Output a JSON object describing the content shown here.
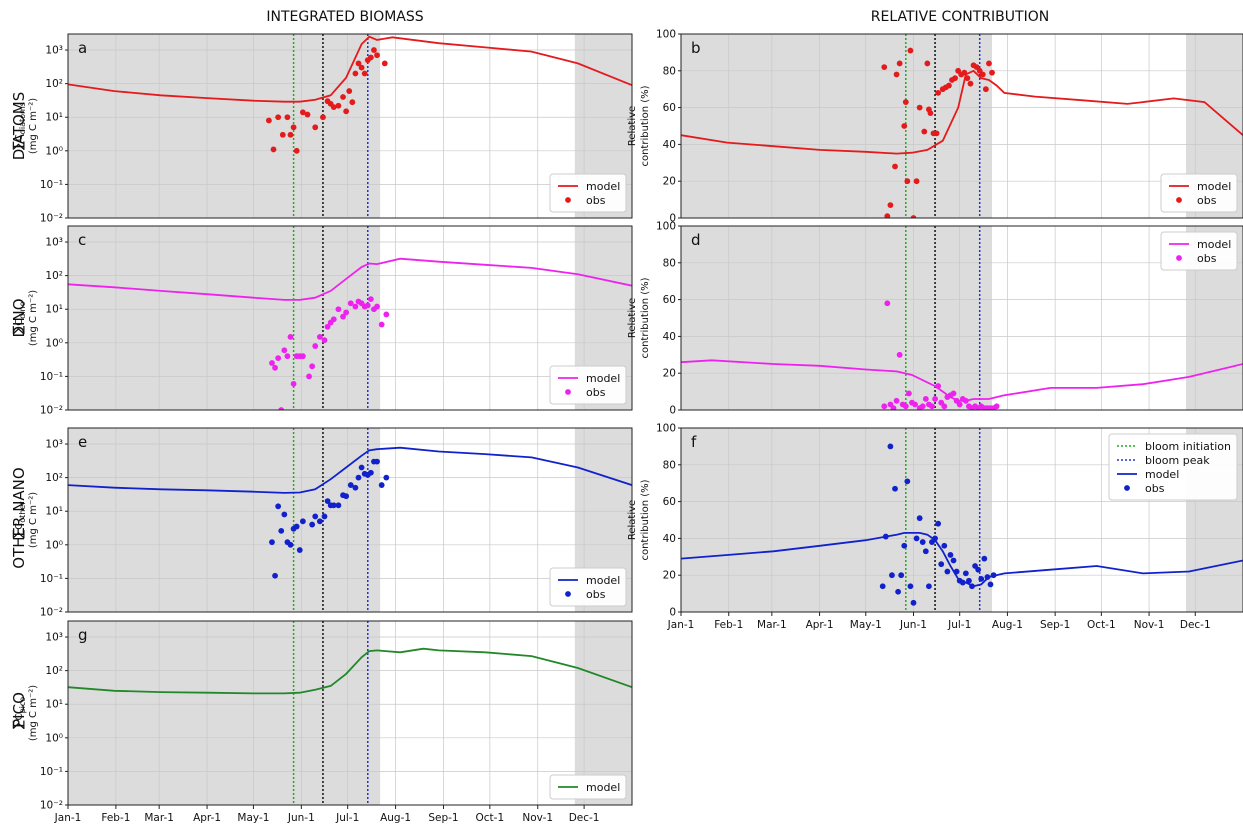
{
  "column_titles": {
    "left": "INTEGRATED BIOMASS",
    "right": "RELATIVE CONTRIBUTION"
  },
  "row_labels": [
    "DIATOMS",
    "DINO",
    "OTHER NANO",
    "PICO"
  ],
  "months": [
    "Jan-1",
    "Feb-1",
    "Mar-1",
    "Apr-1",
    "May-1",
    "Jun-1",
    "Jul-1",
    "Aug-1",
    "Sep-1",
    "Oct-1",
    "Nov-1",
    "Dec-1"
  ],
  "colors": {
    "diatoms": "#e41a1c",
    "dino": "#ee22ee",
    "nano": "#1122cc",
    "pico": "#22882a",
    "shade": "#dcdcdc",
    "bloom_init": "#22aa22",
    "bloom_peak": "#2233cc",
    "black_line": "#111111"
  },
  "markers": {
    "bloom_init_day": 146,
    "shift_day": 165,
    "bloom_peak_day": 194,
    "shade_windows": [
      [
        0,
        202
      ],
      [
        328,
        365
      ]
    ]
  },
  "ticks": {
    "log": [
      "10⁻²",
      "10⁻¹",
      "10⁰",
      "10¹",
      "10²",
      "10³"
    ],
    "pct": [
      "0",
      "20",
      "40",
      "60",
      "80",
      "100"
    ]
  },
  "legend": {
    "model": "model",
    "obs": "obs",
    "bloom_init": "bloom initiation",
    "bloom_peak": "bloom peak"
  },
  "chart_data": [
    {
      "type": "line",
      "panel": "a",
      "group": "DIATOMS",
      "yscale": "log",
      "ylim": [
        0.01,
        3000
      ],
      "ylabel": "∑C_diatoms (mg C m⁻²)",
      "model": {
        "x": [
          0,
          30,
          60,
          90,
          120,
          140,
          150,
          160,
          170,
          180,
          190,
          195,
          200,
          210,
          240,
          270,
          300,
          330,
          365
        ],
        "y": [
          95,
          60,
          45,
          37,
          31,
          29,
          29,
          33,
          45,
          150,
          1500,
          2500,
          2000,
          2400,
          1600,
          1200,
          900,
          400,
          90
        ]
      },
      "obs": {
        "x": [
          130,
          133,
          136,
          139,
          142,
          144,
          146,
          148,
          152,
          155,
          160,
          165,
          168,
          170,
          172,
          175,
          178,
          180,
          182,
          184,
          186,
          188,
          190,
          192,
          194,
          196,
          198,
          200,
          205
        ],
        "y": [
          8,
          1.1,
          10,
          3,
          10,
          3,
          5,
          1,
          14,
          12,
          5,
          10,
          30,
          25,
          20,
          22,
          40,
          15,
          60,
          28,
          200,
          400,
          300,
          200,
          500,
          600,
          1000,
          700,
          400
        ]
      },
      "legend": [
        "model",
        "obs"
      ]
    },
    {
      "type": "line",
      "panel": "c",
      "group": "DINO",
      "yscale": "log",
      "ylim": [
        0.01,
        3000
      ],
      "ylabel": "∑C_dino (mg C m⁻²)",
      "model": {
        "x": [
          0,
          30,
          60,
          90,
          120,
          140,
          150,
          160,
          170,
          180,
          190,
          195,
          200,
          215,
          240,
          270,
          300,
          330,
          365
        ],
        "y": [
          55,
          45,
          35,
          28,
          22,
          19,
          19,
          22,
          35,
          80,
          180,
          230,
          220,
          320,
          260,
          210,
          170,
          110,
          50
        ]
      },
      "obs": {
        "x": [
          132,
          134,
          136,
          138,
          140,
          142,
          144,
          146,
          148,
          150,
          152,
          156,
          158,
          160,
          163,
          166,
          168,
          170,
          172,
          175,
          178,
          180,
          183,
          186,
          188,
          190,
          192,
          194,
          196,
          198,
          200,
          203,
          206
        ],
        "y": [
          0.25,
          0.18,
          0.35,
          0.01,
          0.6,
          0.4,
          1.5,
          0.06,
          0.4,
          0.4,
          0.4,
          0.1,
          0.2,
          0.8,
          1.5,
          1.2,
          3,
          4,
          5,
          10,
          6,
          8,
          15,
          12,
          17,
          15,
          12,
          13,
          20,
          10,
          12,
          3.5,
          7
        ]
      },
      "legend": [
        "model",
        "obs"
      ]
    },
    {
      "type": "line",
      "panel": "e",
      "group": "OTHER NANO",
      "yscale": "log",
      "ylim": [
        0.01,
        3000
      ],
      "ylabel": "∑C_other (mg C m⁻²)",
      "model": {
        "x": [
          0,
          30,
          60,
          90,
          120,
          140,
          150,
          160,
          170,
          180,
          190,
          195,
          200,
          215,
          240,
          270,
          300,
          330,
          365
        ],
        "y": [
          60,
          50,
          45,
          42,
          38,
          35,
          36,
          45,
          90,
          200,
          450,
          650,
          700,
          780,
          600,
          500,
          400,
          200,
          60
        ]
      },
      "obs": {
        "x": [
          132,
          134,
          136,
          138,
          140,
          142,
          144,
          146,
          148,
          150,
          152,
          158,
          160,
          163,
          166,
          168,
          170,
          172,
          175,
          178,
          180,
          183,
          186,
          188,
          190,
          192,
          194,
          196,
          198,
          200,
          203,
          206
        ],
        "y": [
          1.2,
          0.12,
          14,
          2.6,
          8,
          1.2,
          1,
          3,
          3.5,
          0.7,
          5,
          4,
          7,
          5,
          7,
          20,
          15,
          15,
          15,
          30,
          28,
          60,
          50,
          100,
          200,
          130,
          120,
          140,
          300,
          300,
          60,
          100
        ]
      },
      "legend": [
        "model",
        "obs"
      ]
    },
    {
      "type": "line",
      "panel": "g",
      "group": "PICO",
      "yscale": "log",
      "ylim": [
        0.01,
        3000
      ],
      "ylabel": "∑C_pico (mg C m⁻²)",
      "model": {
        "x": [
          0,
          30,
          60,
          90,
          120,
          140,
          150,
          160,
          170,
          180,
          190,
          195,
          200,
          215,
          230,
          240,
          270,
          300,
          330,
          365
        ],
        "y": [
          32,
          25,
          23,
          22,
          21,
          21,
          22,
          27,
          35,
          80,
          250,
          380,
          400,
          350,
          450,
          400,
          350,
          270,
          120,
          32
        ]
      },
      "legend": [
        "model"
      ]
    },
    {
      "type": "line",
      "panel": "b",
      "group": "DIATOMS",
      "yscale": "linear",
      "ylim": [
        0,
        100
      ],
      "ylabel": "Relative contribution (%)",
      "model": {
        "x": [
          0,
          30,
          60,
          90,
          120,
          140,
          150,
          160,
          170,
          180,
          185,
          190,
          195,
          200,
          205,
          210,
          230,
          260,
          290,
          300,
          320,
          340,
          365
        ],
        "y": [
          45,
          41,
          39,
          37,
          36,
          35,
          35.5,
          37,
          42,
          60,
          78,
          80,
          76,
          75,
          72,
          68,
          66,
          64,
          62,
          63,
          65,
          63,
          45
        ]
      },
      "obs": {
        "x": [
          132,
          134,
          136,
          139,
          140,
          142,
          145,
          146,
          147,
          149,
          151,
          153,
          155,
          158,
          160,
          161,
          162,
          164,
          166,
          167,
          170,
          172,
          174,
          176,
          178,
          180,
          182,
          184,
          186,
          188,
          190,
          192,
          194,
          196,
          198,
          200,
          202
        ],
        "y": [
          82,
          1,
          7,
          28,
          78,
          84,
          50,
          63,
          20,
          91,
          0,
          20,
          60,
          47,
          84,
          59,
          57,
          46,
          46,
          68,
          70,
          71,
          72,
          75,
          76,
          80,
          78,
          79,
          76,
          73,
          83,
          82,
          80,
          78,
          70,
          84,
          79
        ]
      },
      "legend": [
        "model",
        "obs"
      ]
    },
    {
      "type": "line",
      "panel": "d",
      "group": "DINO",
      "yscale": "linear",
      "ylim": [
        0,
        100
      ],
      "ylabel": "Relative contribution (%)",
      "model": {
        "x": [
          0,
          20,
          60,
          90,
          120,
          140,
          150,
          160,
          165,
          170,
          175,
          180,
          185,
          190,
          195,
          200,
          210,
          240,
          270,
          300,
          330,
          365
        ],
        "y": [
          26,
          27,
          25,
          24,
          22,
          21,
          19,
          15,
          13,
          10,
          7,
          5,
          5,
          6,
          6,
          6,
          8,
          12,
          12,
          14,
          18,
          25
        ]
      },
      "obs": {
        "x": [
          132,
          134,
          136,
          138,
          140,
          142,
          144,
          146,
          148,
          150,
          152,
          155,
          157,
          159,
          161,
          163,
          165,
          167,
          169,
          171,
          173,
          175,
          177,
          179,
          181,
          183,
          185,
          187,
          189,
          191,
          193,
          195,
          197,
          199,
          201,
          203,
          205
        ],
        "y": [
          2,
          58,
          3,
          1,
          5,
          30,
          3,
          2,
          9,
          4,
          3,
          1,
          2,
          6,
          3,
          2,
          6,
          13,
          4,
          2,
          7,
          8,
          9,
          5,
          3,
          6,
          5,
          2,
          1,
          2,
          1,
          2,
          1,
          1,
          1,
          1,
          2
        ]
      },
      "legend": [
        "model",
        "obs"
      ]
    },
    {
      "type": "line",
      "panel": "f",
      "group": "OTHER NANO",
      "yscale": "linear",
      "ylim": [
        0,
        100
      ],
      "ylabel": "Relative contribution (%)",
      "model": {
        "x": [
          0,
          30,
          60,
          90,
          120,
          140,
          145,
          150,
          155,
          160,
          165,
          170,
          175,
          180,
          185,
          190,
          195,
          200,
          210,
          240,
          270,
          300,
          330,
          365
        ],
        "y": [
          29,
          31,
          33,
          36,
          39,
          42,
          43,
          43,
          43,
          42,
          39,
          33,
          25,
          18,
          16,
          14,
          15,
          19,
          21,
          23,
          25,
          21,
          22,
          28
        ]
      },
      "obs": {
        "x": [
          131,
          133,
          136,
          137,
          139,
          141,
          143,
          145,
          147,
          149,
          151,
          153,
          155,
          157,
          159,
          161,
          163,
          165,
          167,
          169,
          171,
          173,
          175,
          177,
          179,
          181,
          183,
          185,
          187,
          189,
          191,
          193,
          195,
          197,
          199,
          201,
          203
        ],
        "y": [
          14,
          41,
          90,
          20,
          67,
          11,
          20,
          36,
          71,
          14,
          5,
          40,
          51,
          38,
          33,
          14,
          38,
          40,
          48,
          26,
          36,
          22,
          31,
          28,
          22,
          17,
          16,
          21,
          17,
          14,
          25,
          23,
          18,
          29,
          19,
          15,
          20
        ]
      },
      "legend": [
        "bloom initiation",
        "bloom peak",
        "model",
        "obs"
      ]
    }
  ]
}
